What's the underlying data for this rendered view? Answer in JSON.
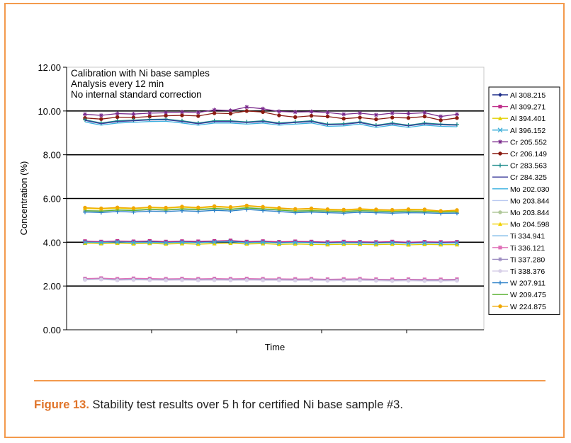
{
  "figure": {
    "label": "Figure 13.",
    "caption": "Stability test results over 5 h for certified Ni base sample #3."
  },
  "colors": {
    "frame": "#f39a4c",
    "caption_label": "#e0742a"
  },
  "chart_data": {
    "type": "line",
    "title": "",
    "xlabel": "Time",
    "ylabel": "Concentration (%)",
    "ylim": [
      0,
      12
    ],
    "yticks": [
      "0.00",
      "2.00",
      "4.00",
      "6.00",
      "8.00",
      "10.00",
      "12.00"
    ],
    "grid": "horizontal",
    "legend_position": "right",
    "annotations": [
      "Calibration with Ni base samples",
      "Analysis every 12 min",
      "No internal standard correction"
    ],
    "x": [
      1,
      2,
      3,
      4,
      5,
      6,
      7,
      8,
      9,
      10,
      11,
      12,
      13,
      14,
      15,
      16,
      17,
      18,
      19,
      20,
      21,
      22,
      23,
      24
    ],
    "series": [
      {
        "name": "Al 308.215",
        "color": "#1f2f8a",
        "marker": "diamond",
        "values": [
          4.02,
          4.0,
          4.03,
          4.01,
          4.03,
          4.0,
          4.02,
          4.01,
          4.03,
          4.05,
          4.0,
          4.02,
          3.99,
          4.01,
          4.0,
          3.98,
          4.0,
          3.99,
          3.98,
          4.0,
          3.97,
          3.99,
          3.98,
          3.99
        ]
      },
      {
        "name": "Al 309.271",
        "color": "#c0308c",
        "marker": "square",
        "values": [
          4.05,
          4.03,
          4.06,
          4.04,
          4.06,
          4.03,
          4.05,
          4.04,
          4.06,
          4.08,
          4.03,
          4.05,
          4.02,
          4.04,
          4.03,
          4.01,
          4.03,
          4.02,
          4.01,
          4.03,
          4.0,
          4.02,
          4.01,
          4.02
        ]
      },
      {
        "name": "Al 394.401",
        "color": "#e3d000",
        "marker": "triangle",
        "values": [
          3.96,
          3.94,
          3.96,
          3.93,
          3.95,
          3.92,
          3.94,
          3.91,
          3.94,
          3.96,
          3.92,
          3.94,
          3.9,
          3.92,
          3.9,
          3.89,
          3.91,
          3.9,
          3.89,
          3.91,
          3.88,
          3.9,
          3.89,
          3.89
        ]
      },
      {
        "name": "Al 396.152",
        "color": "#3aaed8",
        "marker": "x",
        "values": [
          4.0,
          3.99,
          4.01,
          3.99,
          4.0,
          3.98,
          4.0,
          3.98,
          4.01,
          4.02,
          3.98,
          4.0,
          3.97,
          3.99,
          3.98,
          3.96,
          3.98,
          3.97,
          3.96,
          3.98,
          3.95,
          3.97,
          3.96,
          3.97
        ]
      },
      {
        "name": "Cr 205.552",
        "color": "#7a2a8c",
        "marker": "star",
        "values": [
          9.85,
          9.8,
          9.88,
          9.86,
          9.9,
          9.92,
          9.95,
          9.93,
          10.05,
          10.02,
          10.18,
          10.1,
          9.98,
          9.95,
          9.97,
          9.93,
          9.85,
          9.9,
          9.82,
          9.9,
          9.88,
          9.92,
          9.75,
          9.85
        ]
      },
      {
        "name": "Cr 206.149",
        "color": "#8a1a10",
        "marker": "circle",
        "values": [
          9.68,
          9.63,
          9.72,
          9.7,
          9.75,
          9.78,
          9.8,
          9.77,
          9.9,
          9.88,
          10.0,
          9.95,
          9.8,
          9.72,
          9.78,
          9.75,
          9.65,
          9.7,
          9.62,
          9.7,
          9.68,
          9.75,
          9.58,
          9.68
        ]
      },
      {
        "name": "Cr 283.563",
        "color": "#1a8a8a",
        "marker": "plus",
        "values": [
          9.6,
          9.45,
          9.55,
          9.58,
          9.62,
          9.63,
          9.55,
          9.45,
          9.55,
          9.55,
          9.5,
          9.55,
          9.45,
          9.5,
          9.55,
          9.4,
          9.42,
          9.5,
          9.35,
          9.45,
          9.35,
          9.45,
          9.4,
          9.38
        ]
      },
      {
        "name": "Cr 284.325",
        "color": "#3a3a9a",
        "marker": "none",
        "values": [
          9.57,
          9.42,
          9.52,
          9.55,
          9.59,
          9.6,
          9.52,
          9.42,
          9.52,
          9.52,
          9.47,
          9.52,
          9.42,
          9.47,
          9.52,
          9.37,
          9.39,
          9.47,
          9.32,
          9.42,
          9.32,
          9.42,
          9.37,
          9.35
        ]
      },
      {
        "name": "Mo 202.030",
        "color": "#3ab0e0",
        "marker": "none",
        "values": [
          9.5,
          9.35,
          9.45,
          9.48,
          9.52,
          9.53,
          9.45,
          9.35,
          9.45,
          9.45,
          9.4,
          9.45,
          9.35,
          9.4,
          9.45,
          9.3,
          9.32,
          9.4,
          9.25,
          9.35,
          9.25,
          9.35,
          9.3,
          9.28
        ]
      },
      {
        "name": "Mo 203.844",
        "color": "#b8c8f0",
        "marker": "none",
        "values": [
          5.42,
          5.4,
          5.45,
          5.43,
          5.48,
          5.45,
          5.5,
          5.47,
          5.52,
          5.48,
          5.55,
          5.5,
          5.45,
          5.4,
          5.42,
          5.4,
          5.38,
          5.42,
          5.4,
          5.38,
          5.4,
          5.38,
          5.36,
          5.37
        ]
      },
      {
        "name": "Mo 203.844",
        "color": "#b0c89a",
        "marker": "circle",
        "values": [
          5.46,
          5.44,
          5.49,
          5.47,
          5.52,
          5.49,
          5.54,
          5.51,
          5.56,
          5.52,
          5.59,
          5.54,
          5.49,
          5.44,
          5.46,
          5.44,
          5.42,
          5.46,
          5.44,
          5.42,
          5.44,
          5.42,
          5.4,
          5.41
        ]
      },
      {
        "name": "Mo 204.598",
        "color": "#f0d000",
        "marker": "triangle",
        "values": [
          5.55,
          5.52,
          5.56,
          5.53,
          5.58,
          5.55,
          5.6,
          5.56,
          5.62,
          5.58,
          5.66,
          5.6,
          5.54,
          5.5,
          5.52,
          5.48,
          5.46,
          5.5,
          5.47,
          5.45,
          5.48,
          5.47,
          5.4,
          5.44
        ]
      },
      {
        "name": "Ti 334.941",
        "color": "#7ab8e8",
        "marker": "none",
        "values": [
          2.32,
          2.33,
          2.3,
          2.32,
          2.31,
          2.3,
          2.31,
          2.3,
          2.31,
          2.3,
          2.31,
          2.3,
          2.3,
          2.29,
          2.3,
          2.28,
          2.29,
          2.3,
          2.28,
          2.27,
          2.28,
          2.27,
          2.27,
          2.28
        ]
      },
      {
        "name": "Ti 336.121",
        "color": "#e070b8",
        "marker": "square",
        "values": [
          2.34,
          2.36,
          2.33,
          2.35,
          2.34,
          2.33,
          2.34,
          2.33,
          2.34,
          2.33,
          2.34,
          2.33,
          2.33,
          2.32,
          2.33,
          2.31,
          2.32,
          2.33,
          2.31,
          2.3,
          2.31,
          2.3,
          2.3,
          2.31
        ]
      },
      {
        "name": "Ti 337.280",
        "color": "#9a8ac0",
        "marker": "star",
        "values": [
          2.3,
          2.32,
          2.28,
          2.3,
          2.29,
          2.28,
          2.29,
          2.28,
          2.29,
          2.28,
          2.29,
          2.28,
          2.28,
          2.27,
          2.28,
          2.26,
          2.27,
          2.28,
          2.26,
          2.25,
          2.26,
          2.25,
          2.25,
          2.26
        ]
      },
      {
        "name": "Ti 338.376",
        "color": "#d8d0e8",
        "marker": "circle",
        "values": [
          2.28,
          2.3,
          2.26,
          2.28,
          2.27,
          2.26,
          2.27,
          2.26,
          2.27,
          2.26,
          2.27,
          2.26,
          2.26,
          2.25,
          2.26,
          2.24,
          2.25,
          2.26,
          2.24,
          2.23,
          2.24,
          2.23,
          2.23,
          2.24
        ]
      },
      {
        "name": "W 207.911",
        "color": "#2a80c8",
        "marker": "plus",
        "values": [
          5.38,
          5.36,
          5.4,
          5.38,
          5.42,
          5.4,
          5.44,
          5.41,
          5.46,
          5.43,
          5.5,
          5.45,
          5.4,
          5.35,
          5.38,
          5.35,
          5.33,
          5.37,
          5.35,
          5.33,
          5.35,
          5.34,
          5.32,
          5.33
        ]
      },
      {
        "name": "W 209.475",
        "color": "#5ab030",
        "marker": "none",
        "values": [
          5.44,
          5.42,
          5.47,
          5.45,
          5.5,
          5.47,
          5.52,
          5.49,
          5.54,
          5.5,
          5.57,
          5.52,
          5.47,
          5.42,
          5.44,
          5.42,
          5.4,
          5.44,
          5.42,
          5.4,
          5.42,
          5.4,
          5.38,
          5.39
        ]
      },
      {
        "name": "W 224.875",
        "color": "#f0a800",
        "marker": "circle",
        "values": [
          5.58,
          5.55,
          5.59,
          5.56,
          5.61,
          5.58,
          5.63,
          5.59,
          5.65,
          5.61,
          5.68,
          5.62,
          5.57,
          5.52,
          5.55,
          5.51,
          5.49,
          5.53,
          5.5,
          5.48,
          5.51,
          5.5,
          5.43,
          5.47
        ]
      }
    ]
  }
}
